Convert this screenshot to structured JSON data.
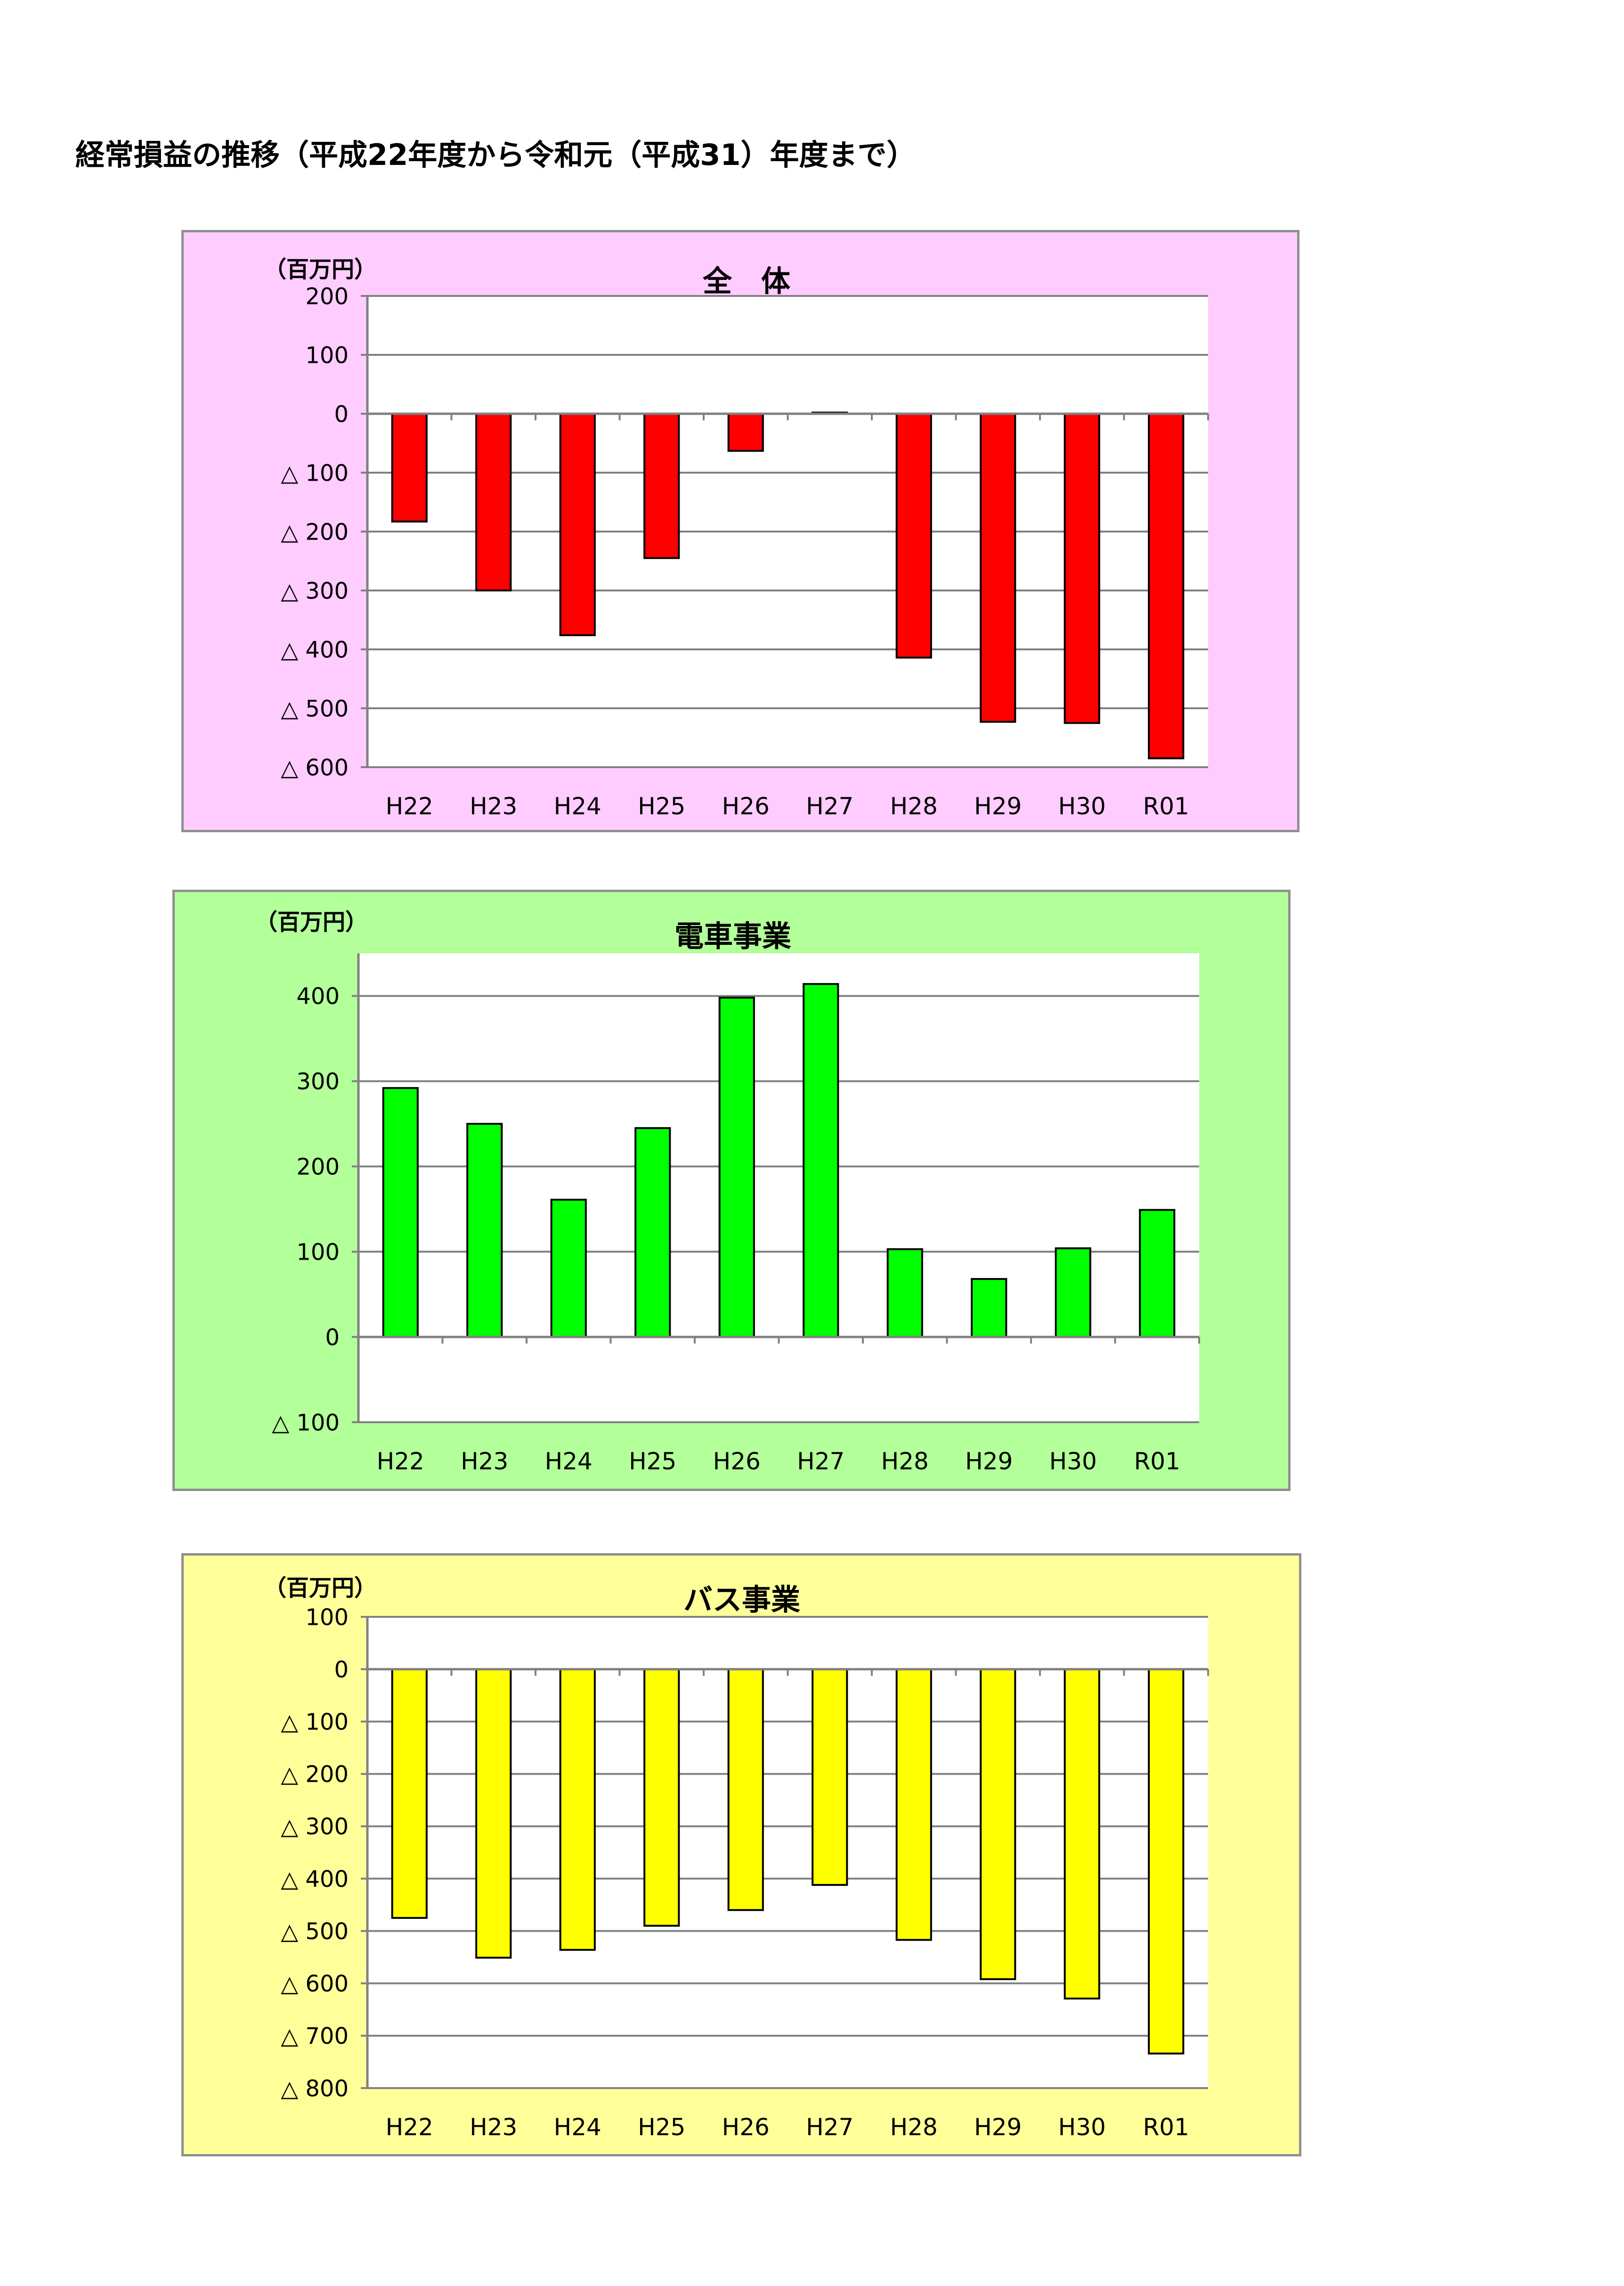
{
  "page": {
    "title": "経常損益の推移（平成22年度から令和元（平成31）年度まで）"
  },
  "chart_data": [
    {
      "type": "bar",
      "title": "全　体",
      "unit_label": "（百万円）",
      "panel_color": "#ffccff",
      "bar_color": "#ff0000",
      "categories": [
        "H22",
        "H23",
        "H24",
        "H25",
        "H26",
        "H27",
        "H28",
        "H29",
        "H30",
        "R01"
      ],
      "series": [
        {
          "values": [
            -183,
            -300,
            -376,
            -245,
            -63,
            2,
            -414,
            -523,
            -525,
            -585
          ]
        }
      ],
      "ylim": [
        -600,
        200
      ],
      "yticks": [
        200,
        100,
        0,
        -100,
        -200,
        -300,
        -400,
        -500,
        -600
      ],
      "ytick_labels": [
        "200",
        "100",
        "0",
        "△ 100",
        "△ 200",
        "△ 300",
        "△ 400",
        "△ 500",
        "△ 600"
      ],
      "grid": true,
      "legend": "none"
    },
    {
      "type": "bar",
      "title": "電車事業",
      "unit_label": "（百万円）",
      "panel_color": "#b3ff99",
      "bar_color": "#00ff00",
      "categories": [
        "H22",
        "H23",
        "H24",
        "H25",
        "H26",
        "H27",
        "H28",
        "H29",
        "H30",
        "R01"
      ],
      "series": [
        {
          "values": [
            292,
            250,
            161,
            245,
            398,
            414,
            103,
            68,
            104,
            149
          ]
        }
      ],
      "ylim": [
        -100,
        450
      ],
      "yticks": [
        400,
        300,
        200,
        100,
        0,
        -100
      ],
      "ytick_labels": [
        "400",
        "300",
        "200",
        "100",
        "0",
        "△ 100"
      ],
      "grid": true,
      "legend": "none"
    },
    {
      "type": "bar",
      "title": "バス事業",
      "unit_label": "（百万円）",
      "panel_color": "#ffff99",
      "bar_color": "#ffff00",
      "categories": [
        "H22",
        "H23",
        "H24",
        "H25",
        "H26",
        "H27",
        "H28",
        "H29",
        "H30",
        "R01"
      ],
      "series": [
        {
          "values": [
            -475,
            -551,
            -536,
            -490,
            -460,
            -412,
            -517,
            -592,
            -629,
            -734
          ]
        }
      ],
      "ylim": [
        -800,
        100
      ],
      "yticks": [
        100,
        0,
        -100,
        -200,
        -300,
        -400,
        -500,
        -600,
        -700,
        -800
      ],
      "ytick_labels": [
        "100",
        "0",
        "△ 100",
        "△ 200",
        "△ 300",
        "△ 400",
        "△ 500",
        "△ 600",
        "△ 700",
        "△ 800"
      ],
      "grid": true,
      "legend": "none"
    }
  ]
}
